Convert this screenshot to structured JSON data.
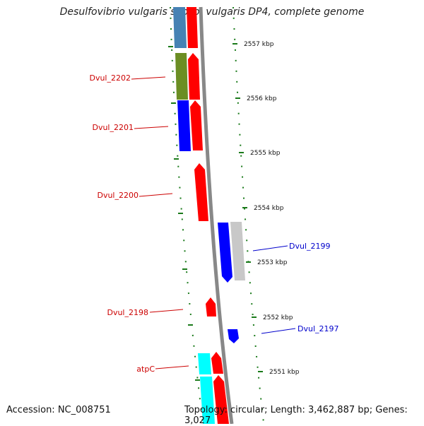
{
  "title": "Desulfovibrio vulgaris subsp. vulgaris DP4, complete genome",
  "footer": {
    "accession": "Accession: NC_008751",
    "stats": "Topology: circular; Length: 3,462,887 bp; Genes: 3,027"
  },
  "ticks": [
    {
      "label": "2557 kbp"
    },
    {
      "label": "2556 kbp"
    },
    {
      "label": "2555 kbp"
    },
    {
      "label": "2554 kbp"
    },
    {
      "label": "2553 kbp"
    },
    {
      "label": "2552 kbp"
    },
    {
      "label": "2551 kbp"
    }
  ],
  "gene_labels": [
    {
      "text": "Dvul_2202",
      "color": "#cc0000"
    },
    {
      "text": "Dvul_2201",
      "color": "#cc0000"
    },
    {
      "text": "Dvul_2200",
      "color": "#cc0000"
    },
    {
      "text": "Dvul_2198",
      "color": "#cc0000"
    },
    {
      "text": "atpC",
      "color": "#cc0000"
    },
    {
      "text": "Dvul_2199",
      "color": "#0000cc"
    },
    {
      "text": "Dvul_2197",
      "color": "#0000cc"
    }
  ],
  "colors": {
    "backbone": "#888888",
    "tick": "#1a7a1a",
    "red": "#ff0000",
    "blue": "#0000ff",
    "olive": "#6b8e23",
    "steelblue": "#4682b4",
    "cyan": "#00ffff",
    "gray": "#c8c8c8"
  }
}
